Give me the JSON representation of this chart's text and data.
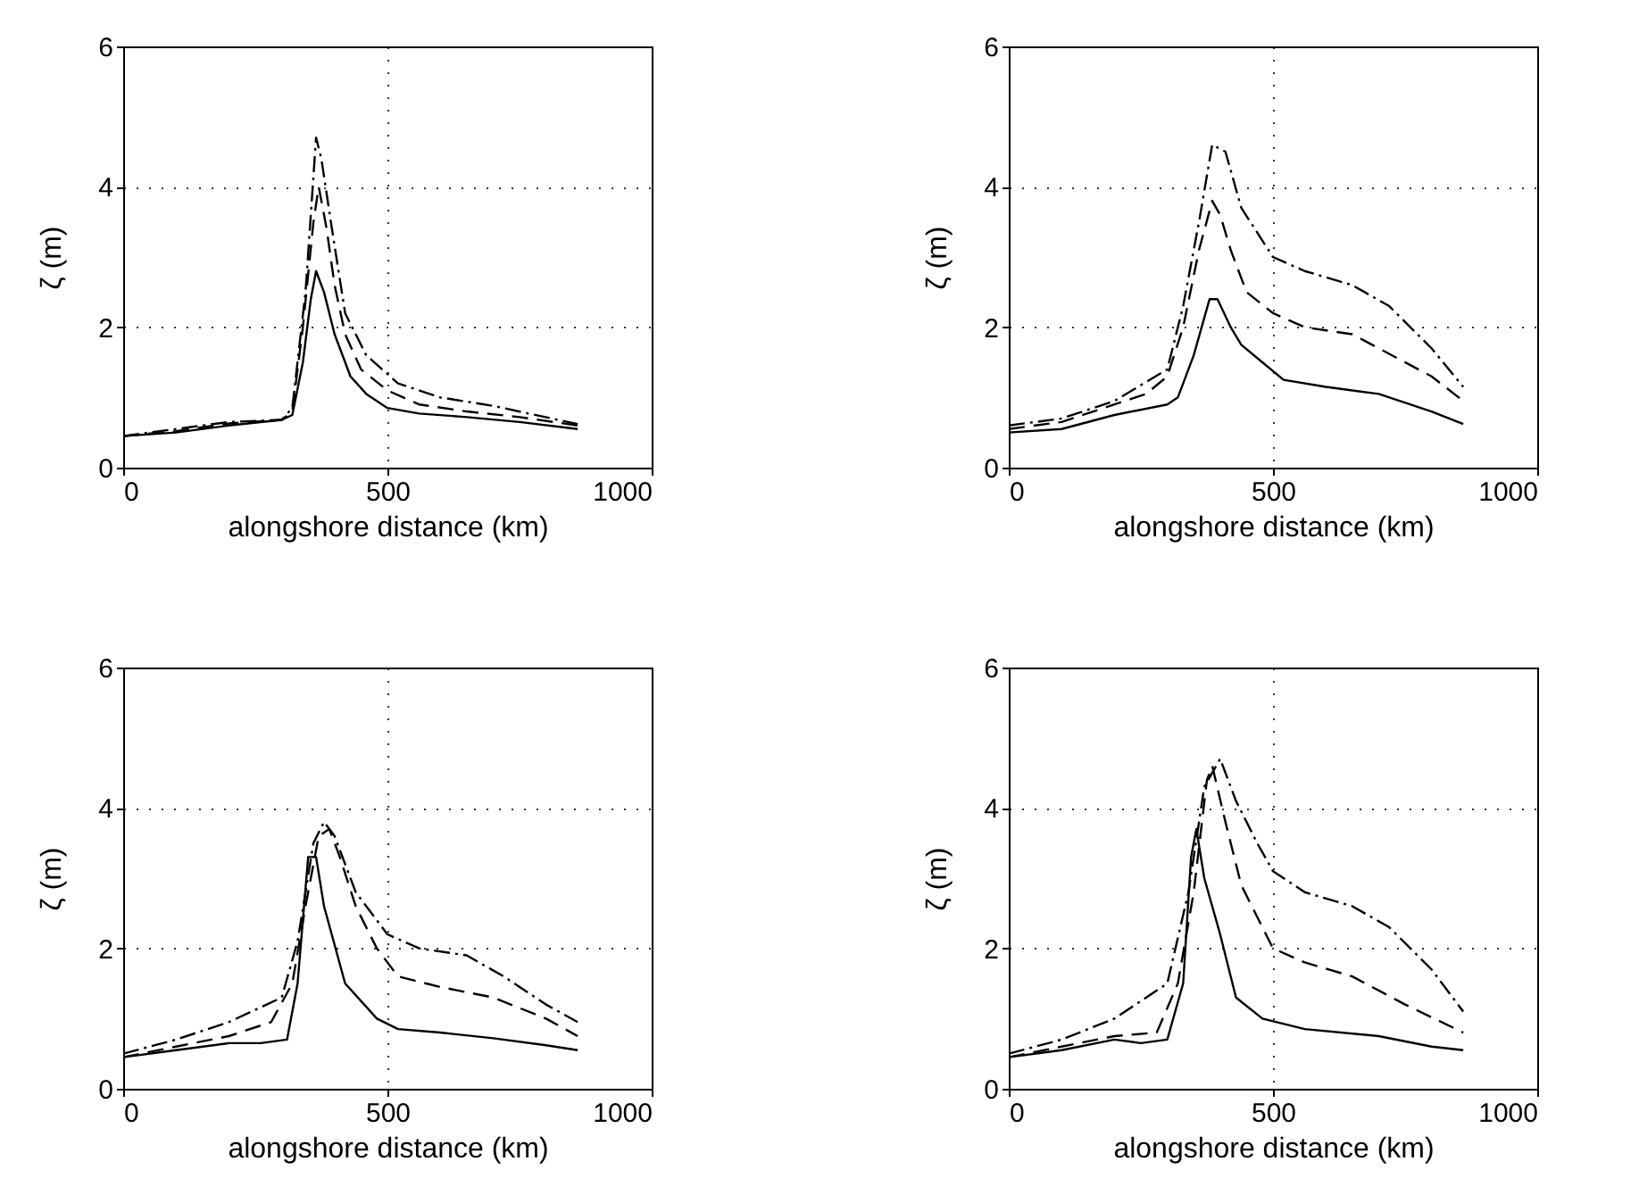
{
  "chart_data": [
    {
      "type": "line",
      "xlabel": "alongshore distance (km)",
      "ylabel": "ζ (m)",
      "xlim": [
        0,
        1000
      ],
      "xticks": [
        0,
        500,
        1000
      ],
      "ylim": [
        0,
        6
      ],
      "yticks": [
        0,
        2,
        4,
        6
      ],
      "grid": true,
      "series": [
        {
          "color": "#000000",
          "line_style": "solid",
          "x": [
            0,
            100,
            200,
            300,
            320,
            340,
            355,
            365,
            380,
            400,
            430,
            460,
            500,
            560,
            650,
            750,
            860
          ],
          "values": [
            0.45,
            0.5,
            0.6,
            0.68,
            0.75,
            1.5,
            2.4,
            2.8,
            2.5,
            1.9,
            1.3,
            1.05,
            0.85,
            0.77,
            0.72,
            0.65,
            0.55
          ]
        },
        {
          "color": "#000000",
          "line_style": "dashed",
          "x": [
            0,
            100,
            200,
            300,
            320,
            340,
            360,
            370,
            385,
            400,
            420,
            450,
            500,
            560,
            650,
            750,
            860
          ],
          "values": [
            0.45,
            0.52,
            0.63,
            0.68,
            0.8,
            2.0,
            3.5,
            4.0,
            3.4,
            2.6,
            1.9,
            1.4,
            1.1,
            0.9,
            0.8,
            0.72,
            0.6
          ]
        },
        {
          "color": "#000000",
          "line_style": "dashdot",
          "x": [
            0,
            200,
            300,
            320,
            345,
            365,
            375,
            395,
            420,
            460,
            520,
            600,
            700,
            860
          ],
          "values": [
            0.45,
            0.65,
            0.68,
            0.85,
            2.5,
            4.7,
            4.4,
            3.4,
            2.2,
            1.6,
            1.2,
            1.0,
            0.88,
            0.62
          ]
        }
      ]
    },
    {
      "type": "line",
      "xlabel": "alongshore distance (km)",
      "ylabel": "ζ (m)",
      "xlim": [
        0,
        1000
      ],
      "xticks": [
        0,
        500,
        1000
      ],
      "ylim": [
        0,
        6
      ],
      "yticks": [
        0,
        2,
        4,
        6
      ],
      "grid": true,
      "series": [
        {
          "color": "#000000",
          "line_style": "solid",
          "x": [
            0,
            100,
            200,
            300,
            320,
            350,
            380,
            395,
            420,
            440,
            480,
            520,
            600,
            700,
            800,
            860
          ],
          "values": [
            0.5,
            0.55,
            0.75,
            0.9,
            1.0,
            1.6,
            2.4,
            2.4,
            2.0,
            1.75,
            1.5,
            1.25,
            1.15,
            1.05,
            0.8,
            0.62
          ]
        },
        {
          "color": "#000000",
          "line_style": "dashed",
          "x": [
            0,
            100,
            200,
            260,
            300,
            330,
            360,
            385,
            400,
            420,
            450,
            500,
            560,
            650,
            700,
            800,
            860
          ],
          "values": [
            0.55,
            0.65,
            0.9,
            1.05,
            1.3,
            2.0,
            3.1,
            3.8,
            3.6,
            3.1,
            2.5,
            2.2,
            2.0,
            1.9,
            1.7,
            1.3,
            0.95
          ]
        },
        {
          "color": "#000000",
          "line_style": "dashdot",
          "x": [
            0,
            100,
            200,
            300,
            330,
            360,
            385,
            410,
            440,
            500,
            560,
            650,
            720,
            800,
            860
          ],
          "values": [
            0.6,
            0.7,
            0.95,
            1.4,
            2.3,
            3.5,
            4.6,
            4.5,
            3.7,
            3.0,
            2.8,
            2.6,
            2.3,
            1.7,
            1.15
          ]
        }
      ]
    },
    {
      "type": "line",
      "xlabel": "alongshore distance (km)",
      "ylabel": "ζ (m)",
      "xlim": [
        0,
        1000
      ],
      "xticks": [
        0,
        500,
        1000
      ],
      "ylim": [
        0,
        6
      ],
      "yticks": [
        0,
        2,
        4,
        6
      ],
      "grid": true,
      "series": [
        {
          "color": "#000000",
          "line_style": "solid",
          "x": [
            0,
            100,
            200,
            260,
            310,
            330,
            350,
            365,
            380,
            420,
            480,
            520,
            600,
            700,
            800,
            860
          ],
          "values": [
            0.45,
            0.55,
            0.65,
            0.65,
            0.7,
            1.5,
            3.3,
            3.3,
            2.6,
            1.5,
            1.0,
            0.85,
            0.8,
            0.72,
            0.62,
            0.55
          ]
        },
        {
          "color": "#000000",
          "line_style": "dashed",
          "x": [
            0,
            100,
            200,
            280,
            320,
            345,
            370,
            390,
            410,
            440,
            480,
            520,
            600,
            700,
            800,
            860
          ],
          "values": [
            0.45,
            0.6,
            0.75,
            0.95,
            1.5,
            2.6,
            3.6,
            3.7,
            3.3,
            2.6,
            2.0,
            1.6,
            1.45,
            1.3,
            1.0,
            0.75
          ]
        },
        {
          "color": "#000000",
          "line_style": "dashdot",
          "x": [
            0,
            100,
            200,
            300,
            330,
            360,
            380,
            400,
            440,
            500,
            560,
            650,
            720,
            800,
            860
          ],
          "values": [
            0.5,
            0.7,
            0.95,
            1.3,
            2.1,
            3.5,
            3.8,
            3.6,
            2.8,
            2.2,
            2.0,
            1.9,
            1.6,
            1.2,
            0.95
          ]
        }
      ]
    },
    {
      "type": "line",
      "xlabel": "alongshore distance (km)",
      "ylabel": "ζ (m)",
      "xlim": [
        0,
        1000
      ],
      "xticks": [
        0,
        500,
        1000
      ],
      "ylim": [
        0,
        6
      ],
      "yticks": [
        0,
        2,
        4,
        6
      ],
      "grid": true,
      "series": [
        {
          "color": "#000000",
          "line_style": "solid",
          "x": [
            0,
            100,
            200,
            250,
            300,
            330,
            345,
            355,
            370,
            400,
            430,
            480,
            560,
            700,
            800,
            860
          ],
          "values": [
            0.45,
            0.55,
            0.7,
            0.65,
            0.7,
            1.5,
            3.3,
            3.7,
            3.0,
            2.2,
            1.3,
            1.0,
            0.85,
            0.75,
            0.6,
            0.55
          ]
        },
        {
          "color": "#000000",
          "line_style": "dashed",
          "x": [
            0,
            100,
            200,
            280,
            320,
            350,
            375,
            385,
            410,
            440,
            500,
            560,
            650,
            750,
            860
          ],
          "values": [
            0.45,
            0.6,
            0.75,
            0.8,
            1.5,
            2.8,
            4.4,
            4.6,
            3.8,
            2.9,
            2.0,
            1.8,
            1.6,
            1.2,
            0.8
          ]
        },
        {
          "color": "#000000",
          "line_style": "dashdot",
          "x": [
            0,
            100,
            200,
            300,
            340,
            370,
            400,
            430,
            470,
            500,
            560,
            650,
            720,
            800,
            860
          ],
          "values": [
            0.5,
            0.7,
            1.0,
            1.5,
            2.8,
            4.3,
            4.7,
            4.1,
            3.5,
            3.1,
            2.8,
            2.6,
            2.3,
            1.7,
            1.1
          ]
        }
      ]
    }
  ]
}
